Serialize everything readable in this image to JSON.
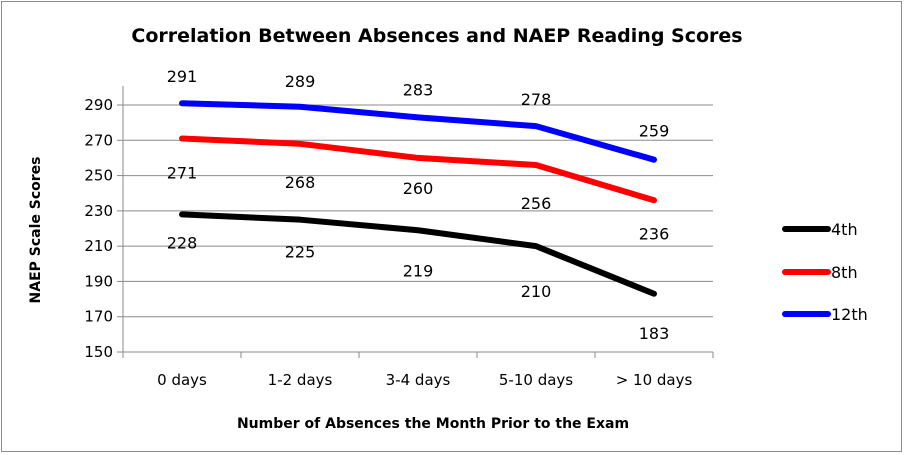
{
  "chart_data": {
    "type": "line",
    "title": "Correlation Between Absences and NAEP Reading Scores",
    "xlabel": "Number of Absences the Month Prior to the Exam",
    "ylabel": "NAEP Scale Scores",
    "categories": [
      "0 days",
      "1-2 days",
      "3-4 days",
      "5-10 days",
      "> 10 days"
    ],
    "ylim": [
      150,
      290
    ],
    "yticks": [
      150,
      170,
      190,
      210,
      230,
      250,
      270,
      290
    ],
    "grid": true,
    "legend_position": "right",
    "series": [
      {
        "name": "4th",
        "color": "#000000",
        "values": [
          228,
          225,
          219,
          210,
          183
        ]
      },
      {
        "name": "8th",
        "color": "#ff0000",
        "values": [
          271,
          268,
          260,
          256,
          236
        ]
      },
      {
        "name": "12th",
        "color": "#0000ff",
        "values": [
          291,
          289,
          283,
          278,
          259
        ]
      }
    ]
  }
}
